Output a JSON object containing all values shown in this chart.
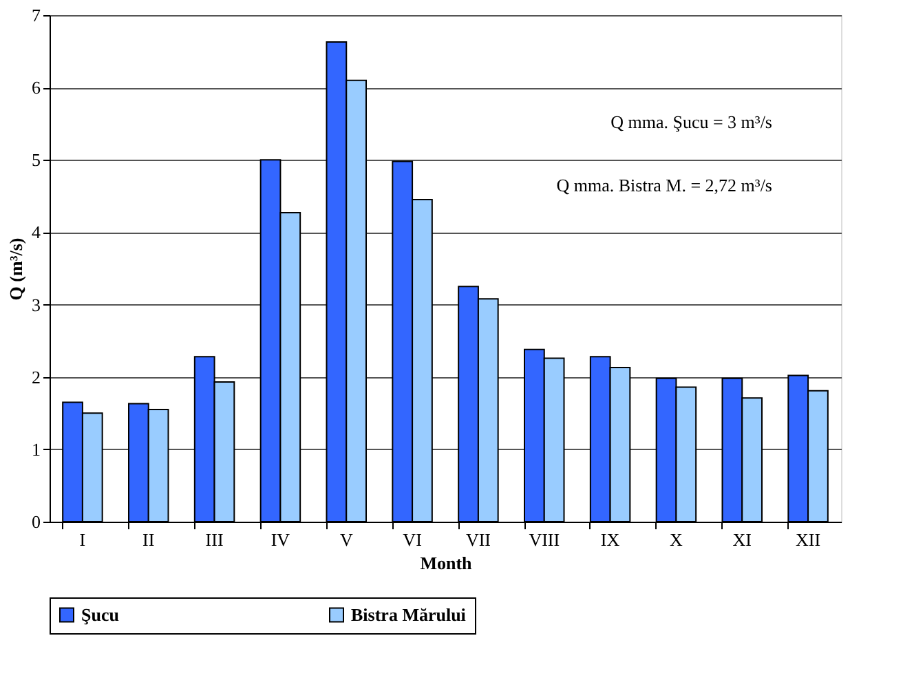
{
  "chart_data": {
    "type": "bar",
    "xlabel": "Month",
    "ylabel": "Q (m³/s)",
    "categories": [
      "I",
      "II",
      "III",
      "IV",
      "V",
      "VI",
      "VII",
      "VIII",
      "IX",
      "X",
      "XI",
      "XII"
    ],
    "series": [
      {
        "name": "Şucu",
        "color": "#3366ff",
        "values": [
          1.65,
          1.63,
          2.28,
          5.0,
          6.63,
          4.98,
          3.25,
          2.38,
          2.28,
          1.98,
          1.98,
          2.02
        ]
      },
      {
        "name": "Bistra Mărului",
        "color": "#99ccff",
        "values": [
          1.5,
          1.55,
          1.93,
          4.27,
          6.1,
          4.45,
          3.08,
          2.26,
          2.13,
          1.86,
          1.71,
          1.81
        ]
      }
    ],
    "ylim": [
      0,
      7
    ],
    "yticks": [
      0,
      1,
      2,
      3,
      4,
      5,
      6,
      7
    ],
    "grid": "y",
    "legend": "bottom",
    "annotations": [
      "Q mma. Şucu = 3 m³/s",
      "Q mma. Bistra M. = 2,72 m³/s"
    ]
  }
}
